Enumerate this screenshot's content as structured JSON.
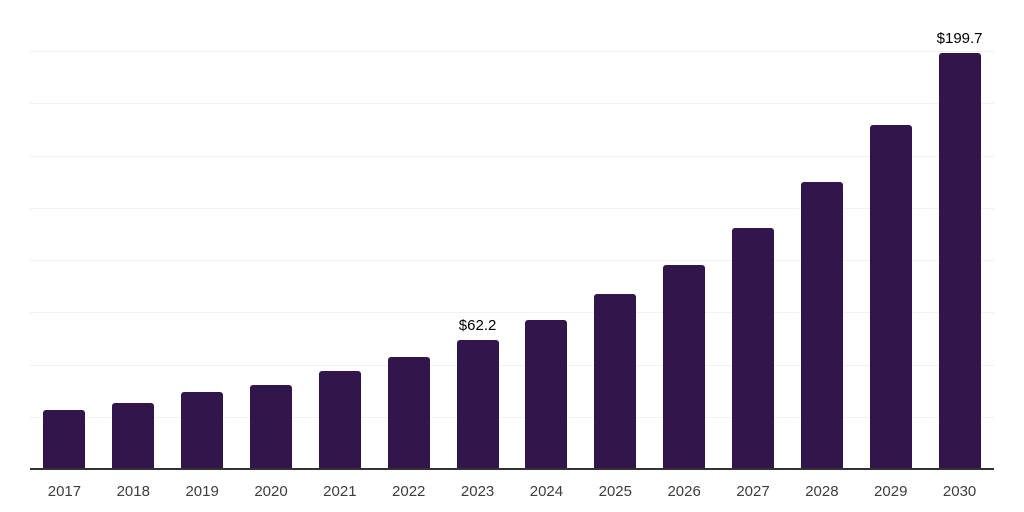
{
  "chart_data": {
    "type": "bar",
    "title": "",
    "categories": [
      "2017",
      "2018",
      "2019",
      "2020",
      "2021",
      "2022",
      "2023",
      "2024",
      "2025",
      "2026",
      "2027",
      "2028",
      "2029",
      "2030"
    ],
    "values": [
      28.6,
      32.2,
      37.3,
      40.8,
      47.2,
      54.0,
      62.2,
      71.8,
      84.3,
      98.1,
      115.7,
      138.0,
      165.2,
      199.7
    ],
    "annotations": [
      {
        "category": "2023",
        "text": "$62.2"
      },
      {
        "category": "2030",
        "text": "$199.7"
      }
    ],
    "xlabel": "",
    "ylabel": "",
    "ylim": [
      0,
      225
    ],
    "grid_step": 25,
    "grid": true,
    "legend": false,
    "colors": {
      "bar": "#31154B",
      "axis_line": "#333333",
      "gridline": "#F1F1F1",
      "tick_label": "#3D3D3D",
      "annotation": "#000000",
      "background": "#FFFFFF"
    }
  }
}
